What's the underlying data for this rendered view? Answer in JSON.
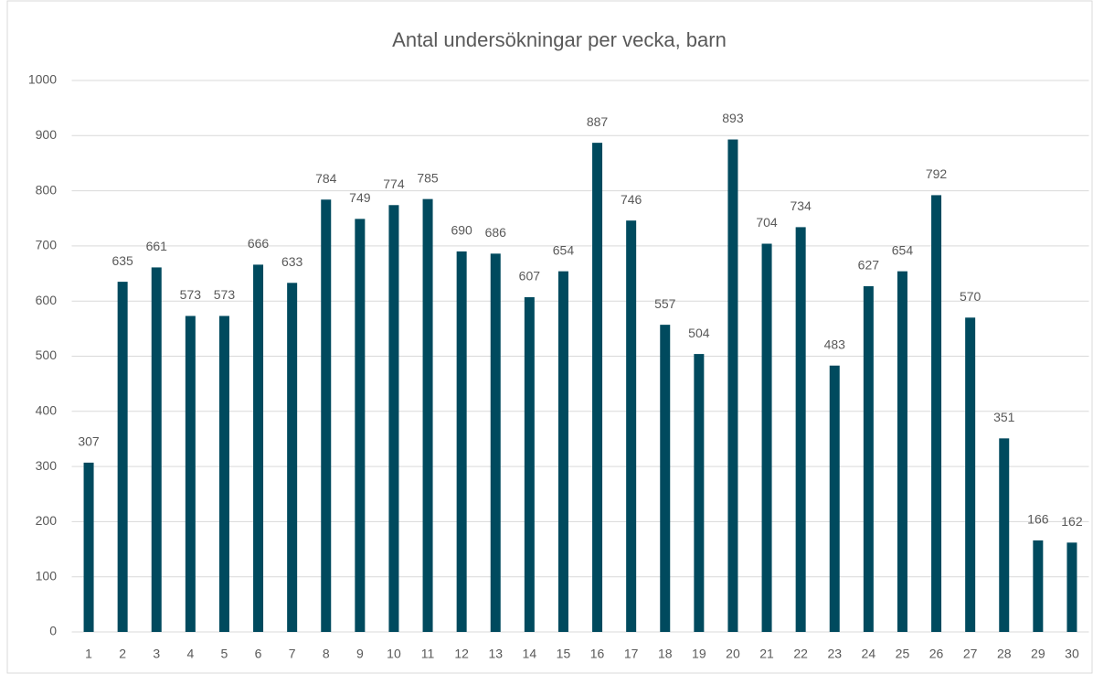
{
  "chart_data": {
    "type": "bar",
    "title": "Antal undersökningar per vecka, barn",
    "categories": [
      "1",
      "2",
      "3",
      "4",
      "5",
      "6",
      "7",
      "8",
      "9",
      "10",
      "11",
      "12",
      "13",
      "14",
      "15",
      "16",
      "17",
      "18",
      "19",
      "20",
      "21",
      "22",
      "23",
      "24",
      "25",
      "26",
      "27",
      "28",
      "29",
      "30"
    ],
    "values": [
      307,
      635,
      661,
      573,
      573,
      666,
      633,
      784,
      749,
      774,
      785,
      690,
      686,
      607,
      654,
      887,
      746,
      557,
      504,
      893,
      704,
      734,
      483,
      627,
      654,
      792,
      570,
      351,
      166,
      162
    ],
    "color": "#004a5e",
    "ylim": [
      0,
      1000
    ],
    "yticks": [
      0,
      100,
      200,
      300,
      400,
      500,
      600,
      700,
      800,
      900,
      1000
    ],
    "grid": true
  }
}
